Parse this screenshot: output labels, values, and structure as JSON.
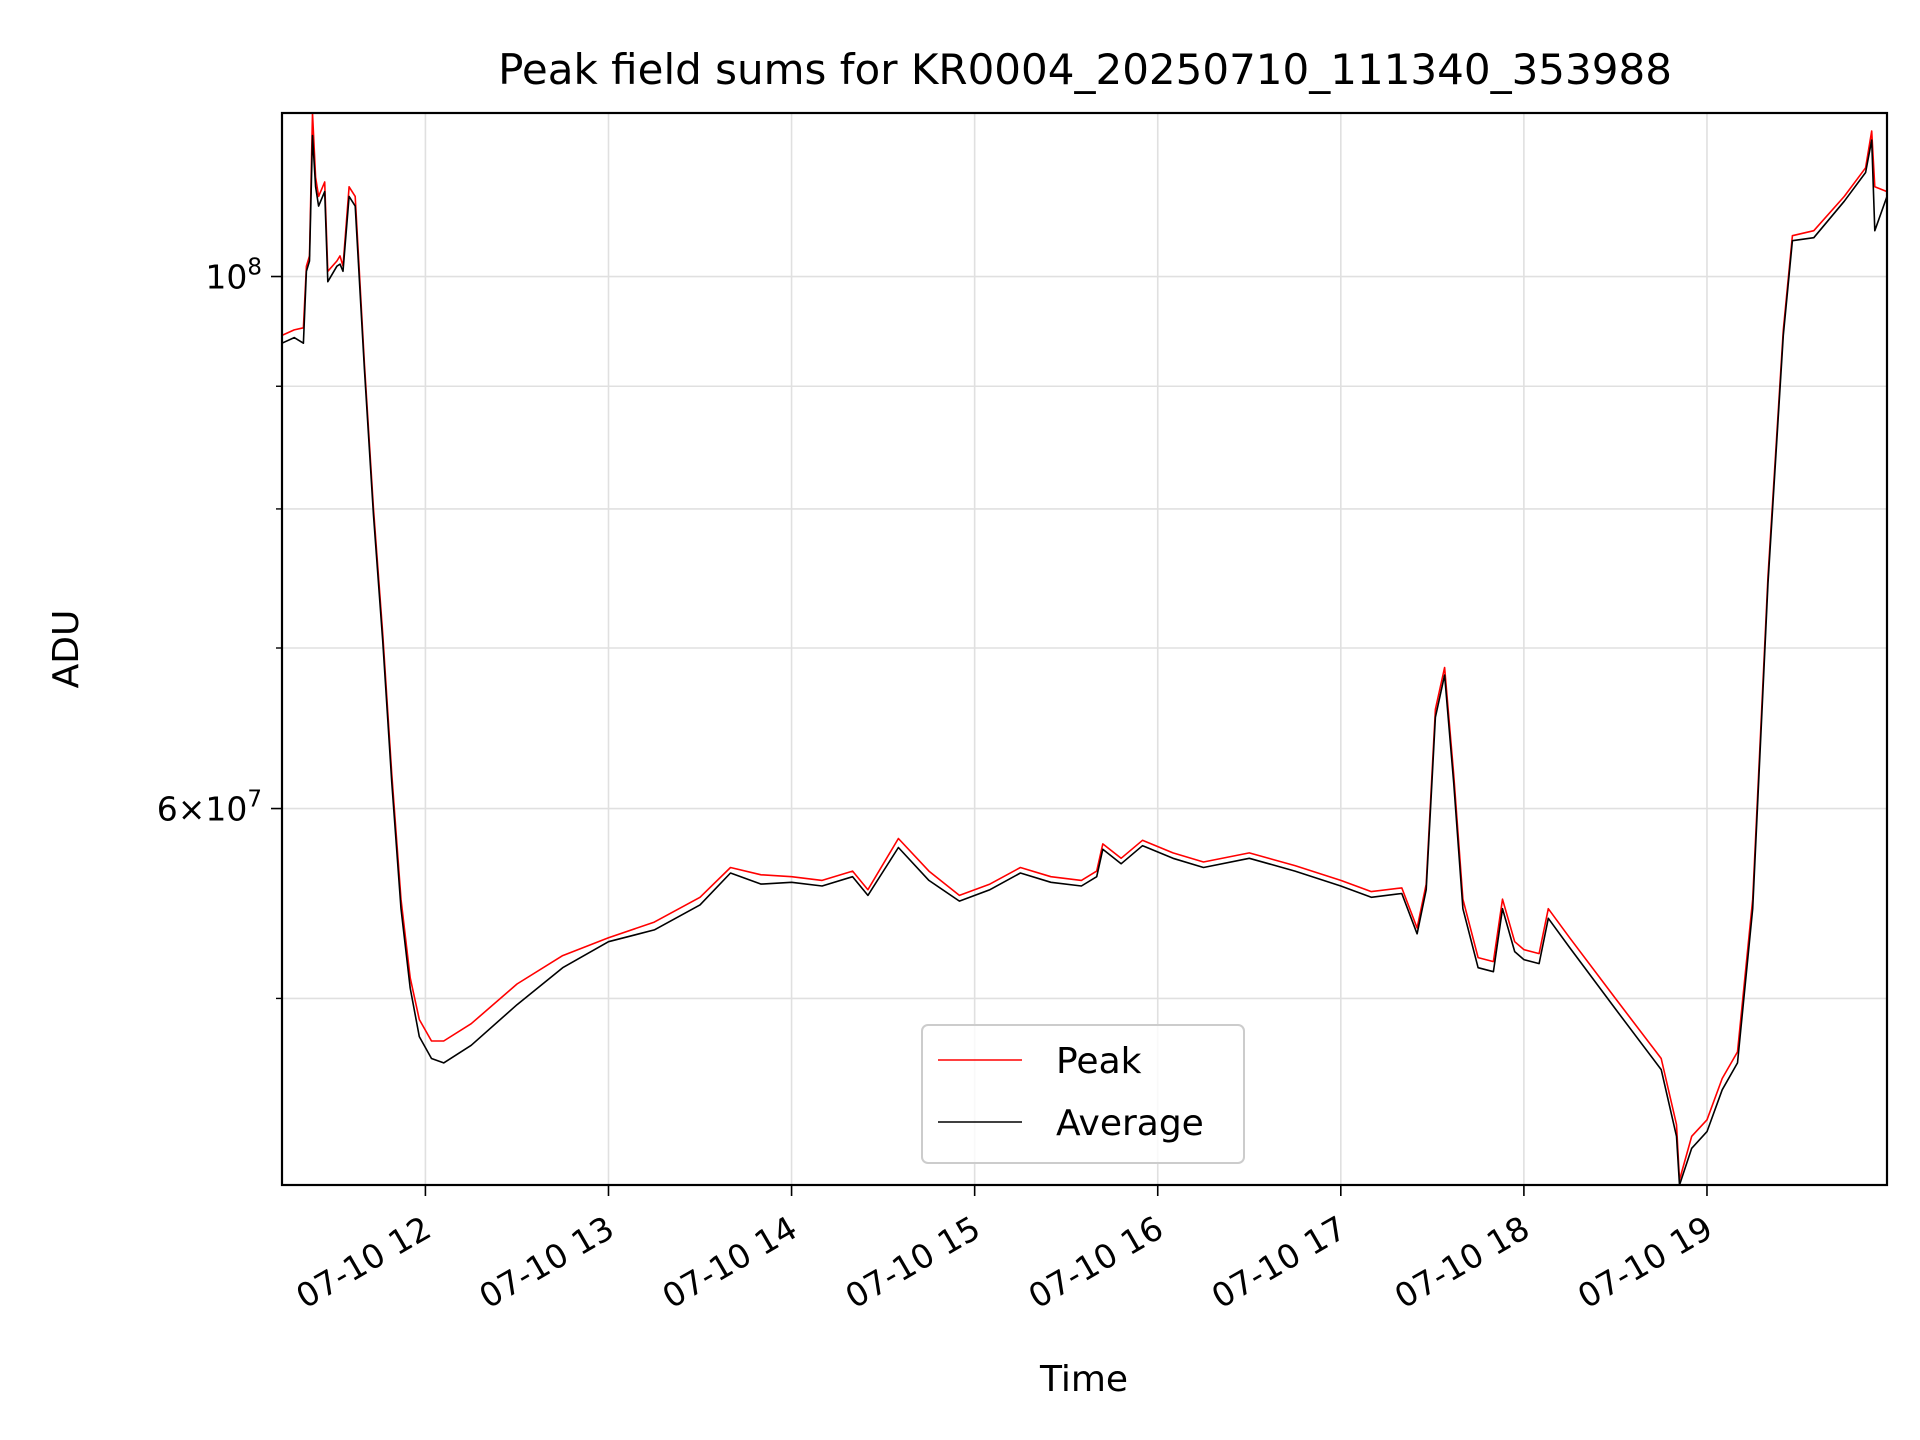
{
  "chart_data": {
    "type": "line",
    "title": "Peak field sums for KR0004_20250710_111340_353988",
    "xlabel": "Time",
    "ylabel": "ADU",
    "yscale": "log",
    "xlim": [
      "2025-07-10T11:13",
      "2025-07-10T19:59"
    ],
    "ylim": [
      41800000,
      117000000
    ],
    "grid": true,
    "legend_position": "lower center",
    "x_ticks": [
      {
        "x": "2025-07-10T12:00",
        "label": "07-10 12"
      },
      {
        "x": "2025-07-10T13:00",
        "label": "07-10 13"
      },
      {
        "x": "2025-07-10T14:00",
        "label": "07-10 14"
      },
      {
        "x": "2025-07-10T15:00",
        "label": "07-10 15"
      },
      {
        "x": "2025-07-10T16:00",
        "label": "07-10 16"
      },
      {
        "x": "2025-07-10T17:00",
        "label": "07-10 17"
      },
      {
        "x": "2025-07-10T18:00",
        "label": "07-10 18"
      },
      {
        "x": "2025-07-10T19:00",
        "label": "07-10 19"
      }
    ],
    "y_major_ticks": [
      {
        "y": 60000000,
        "mantissa": "6",
        "base": "10",
        "exp": "7"
      },
      {
        "y": 100000000,
        "mantissa": "",
        "base": "10",
        "exp": "8"
      }
    ],
    "y_minor_gridlines": [
      50000000,
      70000000,
      80000000,
      90000000
    ],
    "series": [
      {
        "name": "Peak",
        "color": "#ff0000",
        "points": [
          [
            "2025-07-10T11:13",
            94500000
          ],
          [
            "2025-07-10T11:17",
            95000000
          ],
          [
            "2025-07-10T11:20",
            95200000
          ],
          [
            "2025-07-10T11:21",
            101000000
          ],
          [
            "2025-07-10T11:22",
            102000000
          ],
          [
            "2025-07-10T11:23",
            117000000
          ],
          [
            "2025-07-10T11:24",
            110000000
          ],
          [
            "2025-07-10T11:25",
            108000000
          ],
          [
            "2025-07-10T11:27",
            109500000
          ],
          [
            "2025-07-10T11:28",
            100500000
          ],
          [
            "2025-07-10T11:31",
            101500000
          ],
          [
            "2025-07-10T11:32",
            102000000
          ],
          [
            "2025-07-10T11:33",
            101000000
          ],
          [
            "2025-07-10T11:35",
            109000000
          ],
          [
            "2025-07-10T11:37",
            108000000
          ],
          [
            "2025-07-10T11:40",
            92000000
          ],
          [
            "2025-07-10T11:43",
            80000000
          ],
          [
            "2025-07-10T11:46",
            71000000
          ],
          [
            "2025-07-10T11:49",
            62000000
          ],
          [
            "2025-07-10T11:52",
            55000000
          ],
          [
            "2025-07-10T11:55",
            51000000
          ],
          [
            "2025-07-10T11:58",
            49000000
          ],
          [
            "2025-07-10T12:02",
            48000000
          ],
          [
            "2025-07-10T12:06",
            48000000
          ],
          [
            "2025-07-10T12:15",
            48800000
          ],
          [
            "2025-07-10T12:30",
            50700000
          ],
          [
            "2025-07-10T12:45",
            52100000
          ],
          [
            "2025-07-10T13:00",
            53000000
          ],
          [
            "2025-07-10T13:15",
            53800000
          ],
          [
            "2025-07-10T13:30",
            55100000
          ],
          [
            "2025-07-10T13:40",
            56700000
          ],
          [
            "2025-07-10T13:50",
            56300000
          ],
          [
            "2025-07-10T14:00",
            56200000
          ],
          [
            "2025-07-10T14:10",
            56000000
          ],
          [
            "2025-07-10T14:20",
            56500000
          ],
          [
            "2025-07-10T14:25",
            55500000
          ],
          [
            "2025-07-10T14:35",
            58300000
          ],
          [
            "2025-07-10T14:45",
            56500000
          ],
          [
            "2025-07-10T14:55",
            55200000
          ],
          [
            "2025-07-10T15:05",
            55800000
          ],
          [
            "2025-07-10T15:15",
            56700000
          ],
          [
            "2025-07-10T15:25",
            56200000
          ],
          [
            "2025-07-10T15:35",
            56000000
          ],
          [
            "2025-07-10T15:40",
            56500000
          ],
          [
            "2025-07-10T15:42",
            58000000
          ],
          [
            "2025-07-10T15:48",
            57200000
          ],
          [
            "2025-07-10T15:55",
            58200000
          ],
          [
            "2025-07-10T16:05",
            57500000
          ],
          [
            "2025-07-10T16:15",
            57000000
          ],
          [
            "2025-07-10T16:30",
            57500000
          ],
          [
            "2025-07-10T16:45",
            56800000
          ],
          [
            "2025-07-10T17:00",
            56000000
          ],
          [
            "2025-07-10T17:10",
            55400000
          ],
          [
            "2025-07-10T17:20",
            55600000
          ],
          [
            "2025-07-10T17:25",
            53500000
          ],
          [
            "2025-07-10T17:28",
            55800000
          ],
          [
            "2025-07-10T17:31",
            66000000
          ],
          [
            "2025-07-10T17:34",
            68700000
          ],
          [
            "2025-07-10T17:37",
            62000000
          ],
          [
            "2025-07-10T17:40",
            55000000
          ],
          [
            "2025-07-10T17:45",
            52000000
          ],
          [
            "2025-07-10T17:50",
            51800000
          ],
          [
            "2025-07-10T17:53",
            55000000
          ],
          [
            "2025-07-10T17:57",
            52800000
          ],
          [
            "2025-07-10T18:00",
            52400000
          ],
          [
            "2025-07-10T18:05",
            52200000
          ],
          [
            "2025-07-10T18:08",
            54500000
          ],
          [
            "2025-07-10T18:15",
            53000000
          ],
          [
            "2025-07-10T18:30",
            50000000
          ],
          [
            "2025-07-10T18:45",
            47200000
          ],
          [
            "2025-07-10T18:50",
            44300000
          ],
          [
            "2025-07-10T18:51",
            42000000
          ],
          [
            "2025-07-10T18:55",
            43800000
          ],
          [
            "2025-07-10T19:00",
            44500000
          ],
          [
            "2025-07-10T19:05",
            46300000
          ],
          [
            "2025-07-10T19:10",
            47500000
          ],
          [
            "2025-07-10T19:15",
            55000000
          ],
          [
            "2025-07-10T19:20",
            75000000
          ],
          [
            "2025-07-10T19:25",
            95000000
          ],
          [
            "2025-07-10T19:28",
            104000000
          ],
          [
            "2025-07-10T19:35",
            104500000
          ],
          [
            "2025-07-10T19:45",
            108000000
          ],
          [
            "2025-07-10T19:52",
            111000000
          ],
          [
            "2025-07-10T19:54",
            115000000
          ],
          [
            "2025-07-10T19:55",
            109000000
          ],
          [
            "2025-07-10T19:59",
            108500000
          ]
        ]
      },
      {
        "name": "Average",
        "color": "#000000",
        "points": [
          [
            "2025-07-10T11:13",
            93800000
          ],
          [
            "2025-07-10T11:17",
            94300000
          ],
          [
            "2025-07-10T11:20",
            93800000
          ],
          [
            "2025-07-10T11:21",
            100500000
          ],
          [
            "2025-07-10T11:22",
            101500000
          ],
          [
            "2025-07-10T11:23",
            114500000
          ],
          [
            "2025-07-10T11:24",
            109000000
          ],
          [
            "2025-07-10T11:25",
            107000000
          ],
          [
            "2025-07-10T11:27",
            108500000
          ],
          [
            "2025-07-10T11:28",
            99500000
          ],
          [
            "2025-07-10T11:31",
            101000000
          ],
          [
            "2025-07-10T11:32",
            101200000
          ],
          [
            "2025-07-10T11:33",
            100500000
          ],
          [
            "2025-07-10T11:35",
            108000000
          ],
          [
            "2025-07-10T11:37",
            107000000
          ],
          [
            "2025-07-10T11:40",
            91500000
          ],
          [
            "2025-07-10T11:43",
            79500000
          ],
          [
            "2025-07-10T11:46",
            70500000
          ],
          [
            "2025-07-10T11:49",
            61500000
          ],
          [
            "2025-07-10T11:52",
            54500000
          ],
          [
            "2025-07-10T11:55",
            50500000
          ],
          [
            "2025-07-10T11:58",
            48200000
          ],
          [
            "2025-07-10T12:02",
            47200000
          ],
          [
            "2025-07-10T12:06",
            47000000
          ],
          [
            "2025-07-10T12:15",
            47800000
          ],
          [
            "2025-07-10T12:30",
            49700000
          ],
          [
            "2025-07-10T12:45",
            51500000
          ],
          [
            "2025-07-10T13:00",
            52800000
          ],
          [
            "2025-07-10T13:15",
            53400000
          ],
          [
            "2025-07-10T13:30",
            54700000
          ],
          [
            "2025-07-10T13:40",
            56400000
          ],
          [
            "2025-07-10T13:50",
            55800000
          ],
          [
            "2025-07-10T14:00",
            55900000
          ],
          [
            "2025-07-10T14:10",
            55700000
          ],
          [
            "2025-07-10T14:20",
            56200000
          ],
          [
            "2025-07-10T14:25",
            55200000
          ],
          [
            "2025-07-10T14:35",
            57800000
          ],
          [
            "2025-07-10T14:45",
            56000000
          ],
          [
            "2025-07-10T14:55",
            54900000
          ],
          [
            "2025-07-10T15:05",
            55500000
          ],
          [
            "2025-07-10T15:15",
            56400000
          ],
          [
            "2025-07-10T15:25",
            55900000
          ],
          [
            "2025-07-10T15:35",
            55700000
          ],
          [
            "2025-07-10T15:40",
            56200000
          ],
          [
            "2025-07-10T15:42",
            57700000
          ],
          [
            "2025-07-10T15:48",
            56900000
          ],
          [
            "2025-07-10T15:55",
            57900000
          ],
          [
            "2025-07-10T16:05",
            57200000
          ],
          [
            "2025-07-10T16:15",
            56700000
          ],
          [
            "2025-07-10T16:30",
            57200000
          ],
          [
            "2025-07-10T16:45",
            56500000
          ],
          [
            "2025-07-10T17:00",
            55700000
          ],
          [
            "2025-07-10T17:10",
            55100000
          ],
          [
            "2025-07-10T17:20",
            55300000
          ],
          [
            "2025-07-10T17:25",
            53200000
          ],
          [
            "2025-07-10T17:28",
            55500000
          ],
          [
            "2025-07-10T17:31",
            65500000
          ],
          [
            "2025-07-10T17:34",
            68200000
          ],
          [
            "2025-07-10T17:37",
            61500000
          ],
          [
            "2025-07-10T17:40",
            54500000
          ],
          [
            "2025-07-10T17:45",
            51500000
          ],
          [
            "2025-07-10T17:50",
            51300000
          ],
          [
            "2025-07-10T17:53",
            54500000
          ],
          [
            "2025-07-10T17:57",
            52300000
          ],
          [
            "2025-07-10T18:00",
            51900000
          ],
          [
            "2025-07-10T18:05",
            51700000
          ],
          [
            "2025-07-10T18:08",
            54000000
          ],
          [
            "2025-07-10T18:15",
            52500000
          ],
          [
            "2025-07-10T18:30",
            49500000
          ],
          [
            "2025-07-10T18:45",
            46700000
          ],
          [
            "2025-07-10T18:50",
            43800000
          ],
          [
            "2025-07-10T18:51",
            41800000
          ],
          [
            "2025-07-10T18:55",
            43300000
          ],
          [
            "2025-07-10T19:00",
            44000000
          ],
          [
            "2025-07-10T19:05",
            45800000
          ],
          [
            "2025-07-10T19:10",
            47000000
          ],
          [
            "2025-07-10T19:15",
            54500000
          ],
          [
            "2025-07-10T19:20",
            74500000
          ],
          [
            "2025-07-10T19:25",
            94500000
          ],
          [
            "2025-07-10T19:28",
            103500000
          ],
          [
            "2025-07-10T19:35",
            103800000
          ],
          [
            "2025-07-10T19:45",
            107500000
          ],
          [
            "2025-07-10T19:52",
            110500000
          ],
          [
            "2025-07-10T19:54",
            114000000
          ],
          [
            "2025-07-10T19:55",
            104500000
          ],
          [
            "2025-07-10T19:59",
            108000000
          ]
        ]
      }
    ]
  }
}
